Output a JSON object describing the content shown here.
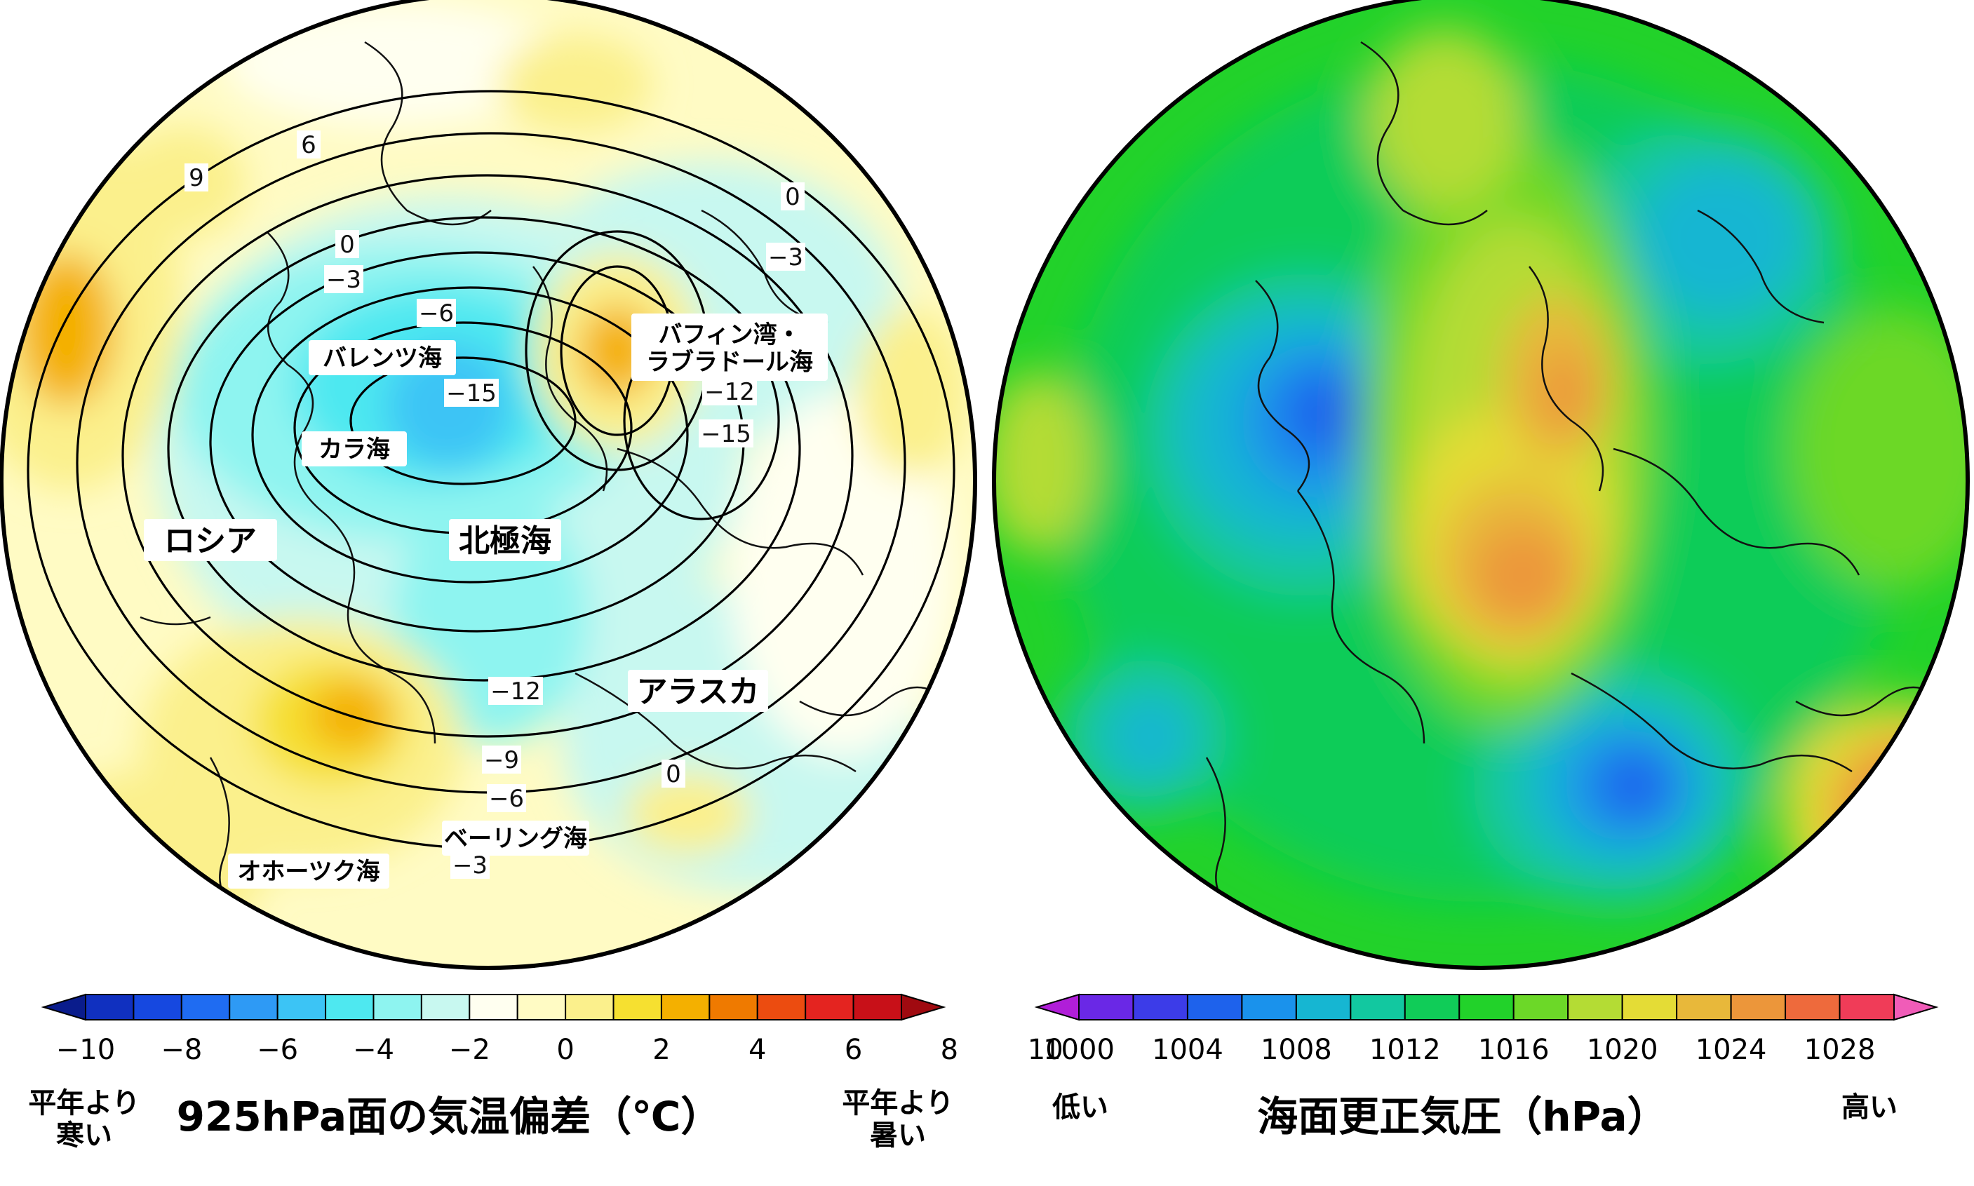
{
  "left_map": {
    "title": "925hPa面の気温偏差（℃）",
    "colorbar_ticks": [
      "−10",
      "−8",
      "−6",
      "−4",
      "−2",
      "0",
      "2",
      "4",
      "6",
      "8",
      "10"
    ],
    "colorbar_colors": [
      "#0a1c8c",
      "#1030c0",
      "#1648e0",
      "#1f6cf2",
      "#2e9af5",
      "#3cc4f5",
      "#4ee8f0",
      "#8ef4f0",
      "#c8f8f0",
      "#fffff0",
      "#fffbc4",
      "#fbf08c",
      "#f6e030",
      "#f4b000",
      "#ef7a00",
      "#ec4c10",
      "#e42420",
      "#c81018",
      "#a00a10"
    ],
    "below_label": "平年より\n寒い",
    "above_label": "平年より\n暑い",
    "region_labels": {
      "barents": "バレンツ海",
      "kara": "カラ海",
      "russia": "ロシア",
      "arctic": "北極海",
      "baffin": "バフィン湾・\nラブラドール海",
      "alaska": "アラスカ",
      "bering": "ベーリング海",
      "okhotsk": "オホーツク海"
    },
    "contour_labels": [
      "9",
      "6",
      "0",
      "−3",
      "−6",
      "−15",
      "0",
      "−3",
      "−12",
      "−15",
      "−12",
      "−9",
      "−6",
      "0",
      "−3"
    ]
  },
  "right_map": {
    "title": "海面更正気圧（hPa）",
    "colorbar_ticks": [
      "1000",
      "1004",
      "1008",
      "1012",
      "1016",
      "1020",
      "1024",
      "1028"
    ],
    "colorbar_colors": [
      "#b01ed8",
      "#6a28e6",
      "#3c3ce8",
      "#1e62ec",
      "#1a92ec",
      "#16b6d2",
      "#12c8a0",
      "#10cc58",
      "#22d22a",
      "#6cd828",
      "#b4dc34",
      "#e4dc36",
      "#e8b83a",
      "#ec963a",
      "#ee6a3c",
      "#f03c58",
      "#f05cb8"
    ],
    "low_label": "低い",
    "high_label": "高い"
  }
}
